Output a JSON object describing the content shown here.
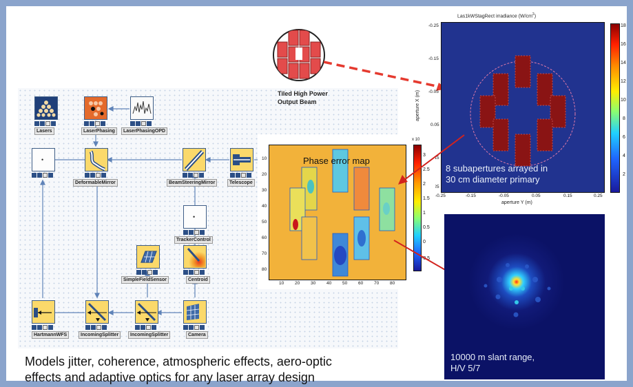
{
  "panel": {
    "background": "#8ba4cc"
  },
  "blocks": {
    "lasers": "Lasers",
    "laser_phasing": "LaserPhasing",
    "laser_phasing_opd": "LaserPhasingOPD",
    "deformable_mirror": "DeformableMirror",
    "beam_steering_mirror": "BeamSteeringMirror",
    "telescope": "Telescope",
    "tracker_control": "TrackerControl",
    "simple_field_sensor": "SimpleFieldSensor",
    "centroid": "Centroid",
    "hartmann_wfs": "HartmannWFS",
    "incoming_splitter_1": "IncomingSplitter",
    "incoming_splitter_2": "IncomingSplitter",
    "camera": "Camera"
  },
  "beam_label": {
    "line1": "Tiled High Power",
    "line2": "Output Beam"
  },
  "phase_map": {
    "title": "Phase error map",
    "colorbar_exp": "x 10",
    "colorbar_ticks": [
      "3",
      "2.5",
      "2",
      "1.5",
      "1",
      "0.5",
      "0",
      "-0.5"
    ],
    "y_ticks": [
      "10",
      "20",
      "30",
      "40",
      "50",
      "60",
      "70",
      "80"
    ],
    "x_ticks": [
      "10",
      "20",
      "30",
      "40",
      "50",
      "60",
      "70",
      "80"
    ]
  },
  "irradiance": {
    "title": "Las1kWStagRect irradiance (W/cm",
    "title_sup": "2",
    "title_end": ")",
    "annotation_line1": "8 subapertures arrayed in",
    "annotation_line2": "30 cm diameter primary",
    "ylabel": "aperture X (m)",
    "xlabel": "aperture Y (m)",
    "y_ticks": [
      "-0.25",
      "-0.15",
      "-0.05",
      "0.05",
      "0.15",
      "0.25"
    ],
    "x_ticks": [
      "-0.25",
      "-0.15",
      "-0.05",
      "0.05",
      "0.15",
      "0.25"
    ],
    "colorbar_ticks": [
      "18",
      "16",
      "14",
      "12",
      "10",
      "8",
      "6",
      "4",
      "2"
    ]
  },
  "far_field": {
    "line1": "10000 m slant range,",
    "line2": "H/V 5/7"
  },
  "caption": {
    "line1": "Models jitter, coherence, atmospheric effects, aero-optic",
    "line2": "effects and adaptive optics for any laser array design"
  }
}
